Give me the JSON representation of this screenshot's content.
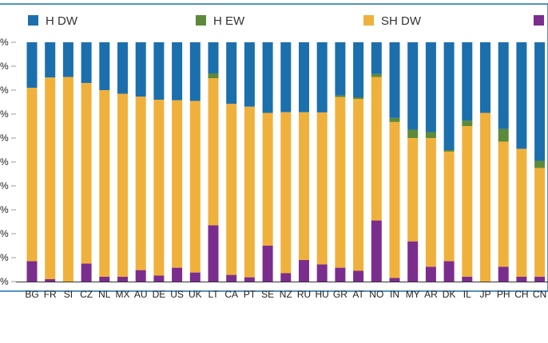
{
  "chart_data": {
    "type": "bar",
    "stacked": true,
    "categories": [
      "BG",
      "FR",
      "SI",
      "CZ",
      "NL",
      "MX",
      "AU",
      "DE",
      "US",
      "UK",
      "LT",
      "CA",
      "PT",
      "SE",
      "NZ",
      "RU",
      "HU",
      "GR",
      "AT",
      "NO",
      "IN",
      "MY",
      "AR",
      "DK",
      "IL",
      "JP",
      "PH",
      "CH",
      "CN"
    ],
    "series": [
      {
        "name": "",
        "color": "#7b2d8e",
        "values": [
          8.5,
          1,
          0,
          7.5,
          2,
          2,
          4.8,
          2.5,
          5.8,
          3.8,
          23.5,
          2.8,
          1.8,
          15,
          3.5,
          9,
          7.2,
          5.8,
          4.5,
          25.5,
          1.5,
          16.8,
          6.2,
          8.5,
          2,
          0,
          6.2,
          2,
          2
        ]
      },
      {
        "name": "SH DW",
        "color": "#f0b13c",
        "values": [
          72.5,
          84.3,
          85.5,
          75.5,
          78,
          76.5,
          72.5,
          73.5,
          70,
          71.7,
          61.5,
          71.5,
          71.3,
          55.5,
          67.3,
          61.8,
          63.5,
          71.3,
          71.8,
          60,
          65.2,
          43.2,
          53.8,
          45.8,
          63,
          70.5,
          52.3,
          53.5,
          45.5
        ]
      },
      {
        "name": "H EW",
        "color": "#5d8a3a",
        "values": [
          0,
          0,
          0,
          0,
          0,
          0,
          0,
          0,
          0,
          0,
          2,
          0,
          0,
          0,
          0,
          0,
          0,
          0.7,
          0.7,
          1.3,
          1.7,
          3.5,
          2.5,
          0.7,
          2.3,
          0,
          5.3,
          0,
          3
        ]
      },
      {
        "name": "H DW",
        "color": "#1c6fad",
        "values": [
          19,
          14.7,
          14.5,
          17,
          20,
          21.5,
          22.7,
          24,
          24.2,
          24.5,
          13,
          25.7,
          26.9,
          29.5,
          29.2,
          29.2,
          29.3,
          22.2,
          23,
          13.2,
          31.6,
          36.5,
          37.5,
          45,
          32.7,
          29.5,
          36.2,
          44.5,
          49.5
        ]
      }
    ],
    "ylim": [
      0,
      100
    ],
    "legend_position": "top",
    "xlabel": "",
    "ylabel": ""
  },
  "legend": {
    "items": [
      {
        "label": "H DW",
        "color": "#1c6fad"
      },
      {
        "label": "H EW",
        "color": "#5d8a3a"
      },
      {
        "label": "SH DW",
        "color": "#f0b13c"
      },
      {
        "label": "",
        "color": "#7b2d8e"
      }
    ]
  },
  "y_axis": {
    "tick_labels": [
      "%",
      "%",
      "%",
      "%",
      "%",
      "%",
      "%",
      "%",
      "%",
      "%",
      "%"
    ]
  },
  "colors": {
    "frame": "#1c6fad",
    "axis": "#333333"
  }
}
